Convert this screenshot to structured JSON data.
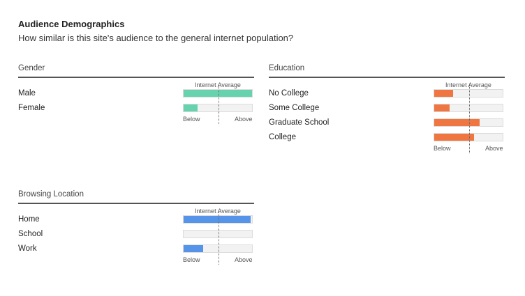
{
  "header": {
    "title": "Audience Demographics",
    "subtitle": "How similar is this site's audience to the general internet population?"
  },
  "colors": {
    "gender": "#66d3ae",
    "education": "#f07641",
    "location": "#5594e8"
  },
  "axis": {
    "average_label": "Internet Average",
    "below_label": "Below",
    "above_label": "Above"
  },
  "sections": {
    "gender": {
      "heading": "Gender",
      "rows": [
        {
          "label": "Male",
          "value": 1.0
        },
        {
          "label": "Female",
          "value": 0.2
        }
      ]
    },
    "education": {
      "heading": "Education",
      "rows": [
        {
          "label": "No College",
          "value": 0.28
        },
        {
          "label": "Some College",
          "value": 0.22
        },
        {
          "label": "Graduate School",
          "value": 0.66
        },
        {
          "label": "College",
          "value": 0.58
        }
      ]
    },
    "location": {
      "heading": "Browsing Location",
      "rows": [
        {
          "label": "Home",
          "value": 0.98
        },
        {
          "label": "School",
          "value": 0.0
        },
        {
          "label": "Work",
          "value": 0.29
        }
      ]
    }
  }
}
